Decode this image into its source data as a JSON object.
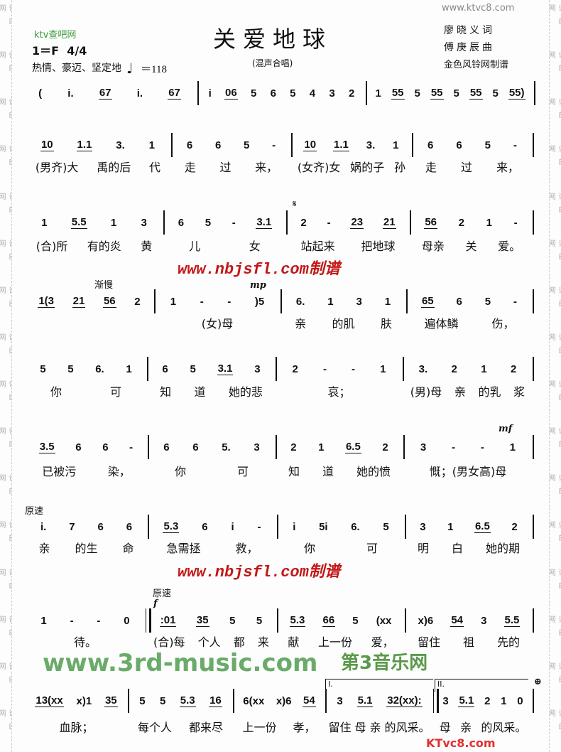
{
  "title": "关爱地球",
  "subtitle": "(混声合唱)",
  "key": "1＝F",
  "time_signature": "4/4",
  "tempo_text": "热情、豪迈、坚定地",
  "tempo_bpm": "＝118",
  "lyricist": "廖晓义词",
  "composer": "傅庚辰曲",
  "arranger": "金色风铃网制谱",
  "side_text": "词曲网",
  "watermarks": {
    "ktv": "ktv查吧网",
    "ktvc8": "www.ktvc8.com",
    "nbjsfl": "www.nbjsfl.com制谱",
    "music3rd": "www.3rd-music.com",
    "music3rd_cn": "第3音乐网",
    "ktvc8_logo": "KTvc8.com"
  },
  "markings": {
    "slowing": "渐慢",
    "original_tempo": "原速",
    "mp": "mp",
    "mf": "mf",
    "f": "f",
    "segno": "𝄋",
    "coda": "⊕",
    "volta1": "I.",
    "volta2": "II."
  },
  "rows": [
    {
      "measures": [
        {
          "notes": "( i. 67 i. 67",
          "lyrics": ""
        },
        {
          "notes": "i 06 5 6 5 4 3 2",
          "lyrics": ""
        },
        {
          "notes": "1 55 5 55 5 55 5 55)",
          "lyrics": ""
        }
      ]
    },
    {
      "measures": [
        {
          "notes": "10 1.1 3. 1",
          "lyrics": "(男齐)大 禹的后 代"
        },
        {
          "notes": "6 6 5 -",
          "lyrics": "走 过 来，"
        },
        {
          "notes": "10 1.1 3. 1",
          "lyrics": "(女齐)女 娲的子 孙"
        },
        {
          "notes": "6 6 5 -",
          "lyrics": "走 过 来，"
        }
      ]
    },
    {
      "measures": [
        {
          "notes": "1 5.5 1 3",
          "lyrics": "(合)所 有的炎 黄"
        },
        {
          "notes": "6 5 - 3.1",
          "lyrics": "儿 女"
        },
        {
          "notes": "2 - 23 21",
          "lyrics": "站起来 把地球"
        },
        {
          "notes": "56 2 1 -",
          "lyrics": "母亲 关 爱。"
        }
      ]
    },
    {
      "measures": [
        {
          "notes": "1(3 21 56 2",
          "lyrics": ""
        },
        {
          "notes": "1 - - )5",
          "lyrics": "(女)母"
        },
        {
          "notes": "6. 1 3 1",
          "lyrics": "亲 的肌 肤"
        },
        {
          "notes": "65 6 5 -",
          "lyrics": "遍体鳞 伤，"
        }
      ]
    },
    {
      "measures": [
        {
          "notes": "5 5 6. 1",
          "lyrics": "你 可"
        },
        {
          "notes": "6 5 3.1 3",
          "lyrics": "知 道 她的悲"
        },
        {
          "notes": "2 - - 1",
          "lyrics": "哀；"
        },
        {
          "notes": "3. 2 1 2",
          "lyrics": "(男)母 亲 的乳 浆"
        }
      ]
    },
    {
      "measures": [
        {
          "notes": "3.5 6 6 -",
          "lyrics": "已被污 染，"
        },
        {
          "notes": "6 6 5. 3",
          "lyrics": "你 可"
        },
        {
          "notes": "2 1 6.5 2",
          "lyrics": "知 道 她的愤"
        },
        {
          "notes": "3 - - 1",
          "lyrics": "慨；(男女高)母"
        }
      ]
    },
    {
      "measures": [
        {
          "notes": "i. 7 6 6",
          "lyrics": "亲 的生 命"
        },
        {
          "notes": "5.3 6 i -",
          "lyrics": "急需拯 救，"
        },
        {
          "notes": "i 5i 6. 5",
          "lyrics": "你 可"
        },
        {
          "notes": "3 1 6.5 2",
          "lyrics": "明 白 她的期"
        }
      ]
    },
    {
      "measures": [
        {
          "notes": "1 - - 0",
          "lyrics": "待。"
        },
        {
          "notes": ":01 35 5 5",
          "lyrics": "(合)每 个人 都 来"
        },
        {
          "notes": "5.3 66 5 (xx",
          "lyrics": "献 上一份 爱，"
        },
        {
          "notes": "x)6 54 3 5.5",
          "lyrics": "留住 祖 先的"
        }
      ]
    },
    {
      "measures": [
        {
          "notes": "13(xx x)1 35",
          "lyrics": "血脉；"
        },
        {
          "notes": "5 5 5.3 16",
          "lyrics": "每个人 都来尽"
        },
        {
          "notes": "6(xx x)6 54",
          "lyrics": "上一份 孝，"
        },
        {
          "notes": "3 5.1 32(xx):",
          "lyrics": "留住 母 亲 的风采。"
        },
        {
          "notes": "3 5.1 2 1 0",
          "lyrics": "母 亲 的风采。"
        }
      ]
    }
  ]
}
